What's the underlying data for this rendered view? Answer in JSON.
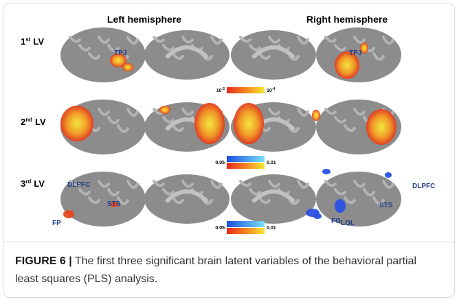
{
  "headers": {
    "left": "Left hemisphere",
    "right": "Right hemisphere"
  },
  "rows": [
    {
      "base": "1",
      "sup": "st",
      "rest": "LV"
    },
    {
      "base": "2",
      "sup": "nd",
      "rest": "LV"
    },
    {
      "base": "3",
      "sup": "rd",
      "rest": "LV"
    }
  ],
  "colorbars": {
    "p_low": {
      "base": "10",
      "sup": "-2"
    },
    "p_high": {
      "base": "10",
      "sup": "-4"
    },
    "row2": [
      "0.05",
      "0.01"
    ],
    "row3": [
      "0.05",
      "0.01"
    ]
  },
  "regions": {
    "row1": [
      "TPJ",
      "TPJ"
    ],
    "row3": [
      "DLPFC",
      "STS",
      "FP",
      "FG",
      "LOL",
      "STS",
      "DLPFC"
    ]
  },
  "caption": {
    "label": "FIGURE 6 |",
    "text": "The first three significant brain latent variables of the behavioral partial least squares (PLS) analysis."
  }
}
